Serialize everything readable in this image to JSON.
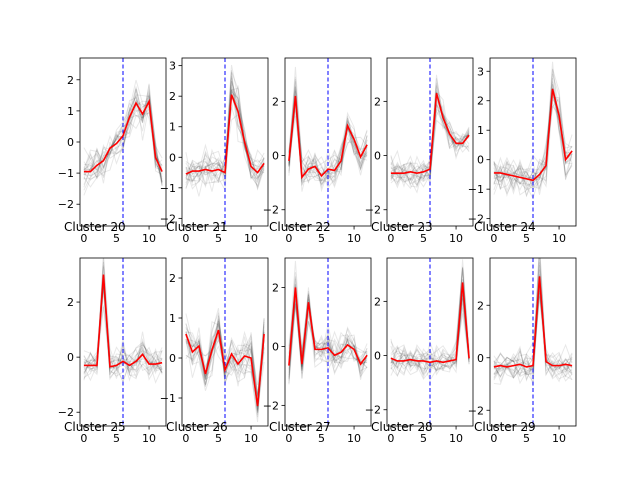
{
  "chart_data": [
    {
      "type": "line",
      "title": "Cluster 20",
      "xticks": [
        0,
        5,
        10
      ],
      "xlim": [
        -0.6,
        12.6
      ],
      "yticks": [
        -2,
        -1,
        0,
        1,
        2
      ],
      "ylim": [
        -2.7,
        2.7
      ],
      "vline_x": 6,
      "series": [
        {
          "values": [
            -0.95,
            -0.95,
            -0.75,
            -0.6,
            -0.2,
            -0.05,
            0.2,
            0.8,
            1.25,
            0.9,
            1.3,
            -0.5,
            -0.95
          ]
        }
      ]
    },
    {
      "type": "line",
      "title": "Cluster 21",
      "xticks": [
        0,
        5,
        10
      ],
      "xlim": [
        -0.6,
        12.6
      ],
      "yticks": [
        -2,
        -1,
        0,
        1,
        2,
        3
      ],
      "ylim": [
        -2.25,
        3.25
      ],
      "vline_x": 6,
      "series": [
        {
          "values": [
            -0.55,
            -0.45,
            -0.45,
            -0.4,
            -0.45,
            -0.4,
            -0.5,
            2.05,
            1.5,
            0.5,
            -0.3,
            -0.5,
            -0.2
          ]
        }
      ]
    },
    {
      "type": "line",
      "title": "Cluster 22",
      "xticks": [
        0,
        5,
        10
      ],
      "xlim": [
        -0.6,
        12.6
      ],
      "yticks": [
        -2,
        0,
        2
      ],
      "ylim": [
        -2.6,
        3.6
      ],
      "vline_x": 6,
      "series": [
        {
          "values": [
            -0.2,
            2.2,
            -0.8,
            -0.5,
            -0.4,
            -0.75,
            -0.5,
            -0.55,
            -0.2,
            1.1,
            0.6,
            -0.05,
            0.4
          ]
        }
      ]
    },
    {
      "type": "line",
      "title": "Cluster 23",
      "xticks": [
        0,
        5,
        10
      ],
      "xlim": [
        -0.6,
        12.6
      ],
      "yticks": [
        -2,
        0,
        2
      ],
      "ylim": [
        -2.6,
        3.6
      ],
      "vline_x": 6,
      "series": [
        {
          "values": [
            -0.65,
            -0.65,
            -0.65,
            -0.6,
            -0.65,
            -0.6,
            -0.5,
            2.3,
            1.4,
            0.8,
            0.45,
            0.45,
            0.75
          ]
        }
      ]
    },
    {
      "type": "line",
      "title": "Cluster 24",
      "xticks": [
        0,
        5,
        10
      ],
      "xlim": [
        -0.6,
        12.6
      ],
      "yticks": [
        -2,
        -1,
        0,
        1,
        2,
        3
      ],
      "ylim": [
        -2.25,
        3.45
      ],
      "vline_x": 6,
      "series": [
        {
          "values": [
            -0.45,
            -0.45,
            -0.5,
            -0.55,
            -0.6,
            -0.65,
            -0.7,
            -0.5,
            -0.2,
            2.4,
            1.5,
            0.0,
            0.3
          ]
        }
      ]
    },
    {
      "type": "line",
      "title": "Cluster 25",
      "xticks": [
        0,
        5,
        10
      ],
      "xlim": [
        -0.6,
        12.6
      ],
      "yticks": [
        -2,
        0,
        2
      ],
      "ylim": [
        -2.5,
        3.6
      ],
      "vline_x": 6,
      "series": [
        {
          "values": [
            -0.3,
            -0.3,
            -0.3,
            3.0,
            -0.35,
            -0.3,
            -0.15,
            -0.3,
            -0.15,
            0.1,
            -0.25,
            -0.25,
            -0.2
          ]
        }
      ]
    },
    {
      "type": "line",
      "title": "Cluster 26",
      "xticks": [
        0,
        5,
        10
      ],
      "xlim": [
        -0.6,
        12.6
      ],
      "yticks": [
        -1,
        0,
        1,
        2
      ],
      "ylim": [
        -1.7,
        2.5
      ],
      "vline_x": 6,
      "series": [
        {
          "values": [
            0.6,
            0.15,
            0.3,
            -0.4,
            0.2,
            0.7,
            -0.3,
            0.1,
            -0.15,
            0.05,
            0.0,
            -1.2,
            0.6
          ]
        }
      ]
    },
    {
      "type": "line",
      "title": "Cluster 27",
      "xticks": [
        0,
        5,
        10
      ],
      "xlim": [
        -0.6,
        12.6
      ],
      "yticks": [
        -2,
        0,
        2
      ],
      "ylim": [
        -2.7,
        3.0
      ],
      "vline_x": 6,
      "series": [
        {
          "values": [
            -0.65,
            2.0,
            -0.6,
            1.5,
            -0.1,
            -0.1,
            -0.05,
            -0.3,
            -0.2,
            0.05,
            -0.1,
            -0.6,
            -0.3
          ]
        }
      ]
    },
    {
      "type": "line",
      "title": "Cluster 28",
      "xticks": [
        0,
        5,
        10
      ],
      "xlim": [
        -0.6,
        12.6
      ],
      "yticks": [
        -2,
        0,
        2
      ],
      "ylim": [
        -2.6,
        3.6
      ],
      "vline_x": 6,
      "series": [
        {
          "values": [
            -0.1,
            -0.2,
            -0.2,
            -0.15,
            -0.2,
            -0.2,
            -0.25,
            -0.2,
            -0.25,
            -0.2,
            -0.15,
            2.7,
            -0.1
          ]
        }
      ]
    },
    {
      "type": "line",
      "title": "Cluster 29",
      "xticks": [
        0,
        5,
        10
      ],
      "xlim": [
        -0.6,
        12.6
      ],
      "yticks": [
        -2,
        0,
        2
      ],
      "ylim": [
        -2.6,
        3.8
      ],
      "vline_x": 6,
      "series": [
        {
          "values": [
            -0.35,
            -0.3,
            -0.35,
            -0.3,
            -0.25,
            -0.35,
            -0.3,
            3.1,
            -0.15,
            -0.3,
            -0.3,
            -0.25,
            -0.3
          ]
        }
      ]
    }
  ]
}
